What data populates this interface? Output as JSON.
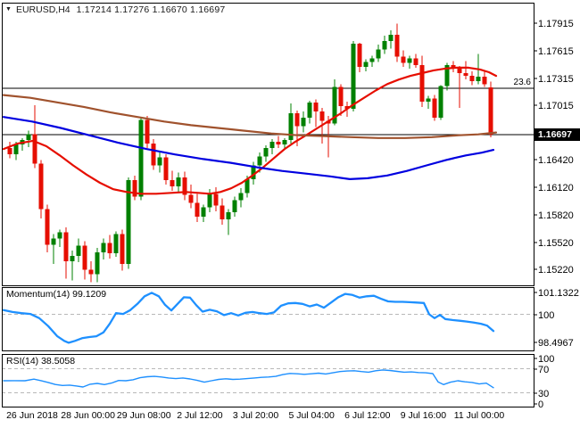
{
  "header": {
    "caret": "▼",
    "symbol": "EURUSD,H4",
    "open": "1.17214",
    "high": "1.17276",
    "low": "1.16670",
    "close": "1.16697"
  },
  "fib": {
    "label": "23.6",
    "price": 1.172
  },
  "price_axis": {
    "ticks": [
      "1.17915",
      "1.17615",
      "1.17315",
      "1.17015",
      "1.16420",
      "1.16120",
      "1.15820",
      "1.15520",
      "1.15220"
    ],
    "current_price": "1.16697"
  },
  "time_axis": {
    "labels": [
      "26 Jun 2018",
      "28 Jun 00:00",
      "29 Jun 08:00",
      "2 Jul 12:00",
      "3 Jul 20:00",
      "5 Jul 04:00",
      "6 Jul 12:00",
      "9 Jul 16:00",
      "11 Jul 00:00"
    ]
  },
  "indicators": {
    "momentum": {
      "label": "Momentum(14) 99.1209",
      "name": "Momentum",
      "period": 14,
      "value": "99.1209",
      "axis_ticks": [
        "101.1322",
        "100",
        "98.4967"
      ],
      "dashed_level": 100
    },
    "rsi": {
      "label": "RSI(14) 38.5058",
      "name": "RSI",
      "period": 14,
      "value": "38.5058",
      "axis_ticks": [
        "100",
        "70",
        "30",
        "0"
      ],
      "dashed_levels": [
        70,
        30
      ]
    }
  },
  "colors": {
    "bull": "#008000",
    "bear": "#e60e00",
    "ma_fast": "#e60e00",
    "ma_mid": "#0000e0",
    "ma_slow": "#a0522d",
    "indicator_line": "#1e90ff",
    "dashed_level": "#b8b8b8",
    "border": "#000000",
    "price_box_bg": "#000000",
    "price_box_text": "#ffffff"
  },
  "chart_data": {
    "type": "candlestick",
    "symbol": "EURUSD",
    "timeframe": "H4",
    "title": "EURUSD,H4 1.17214 1.17276 1.16670 1.16697",
    "visible_price_range": [
      1.1522,
      1.17915
    ],
    "horizontal_levels": [
      {
        "label": "23.6",
        "price": 1.172,
        "style": "fibonacci"
      },
      {
        "label": "1.16697",
        "price": 1.16697,
        "style": "current-price"
      }
    ],
    "candles": [
      [
        1.1655,
        1.1662,
        1.1644,
        1.1648
      ],
      [
        1.1648,
        1.1662,
        1.1642,
        1.1659
      ],
      [
        1.1659,
        1.1666,
        1.1652,
        1.1664
      ],
      [
        1.1664,
        1.1674,
        1.1656,
        1.167
      ],
      [
        1.167,
        1.1702,
        1.1633,
        1.1638
      ],
      [
        1.1638,
        1.1642,
        1.1578,
        1.1588
      ],
      [
        1.1588,
        1.1593,
        1.1541,
        1.1549
      ],
      [
        1.1549,
        1.1561,
        1.1528,
        1.1556
      ],
      [
        1.1556,
        1.1566,
        1.1547,
        1.1563
      ],
      [
        1.1563,
        1.1568,
        1.1512,
        1.1531
      ],
      [
        1.1531,
        1.1543,
        1.151,
        1.1537
      ],
      [
        1.1537,
        1.1556,
        1.153,
        1.1548
      ],
      [
        1.1548,
        1.1553,
        1.1511,
        1.1522
      ],
      [
        1.1522,
        1.1531,
        1.1508,
        1.1517
      ],
      [
        1.1517,
        1.1546,
        1.1508,
        1.1541
      ],
      [
        1.1541,
        1.1556,
        1.1533,
        1.1551
      ],
      [
        1.1551,
        1.156,
        1.1534,
        1.154
      ],
      [
        1.154,
        1.1564,
        1.1536,
        1.1561
      ],
      [
        1.1561,
        1.1566,
        1.1521,
        1.1528
      ],
      [
        1.1528,
        1.1623,
        1.1523,
        1.162
      ],
      [
        1.162,
        1.1625,
        1.1598,
        1.1602
      ],
      [
        1.1602,
        1.1688,
        1.1598,
        1.1686
      ],
      [
        1.1686,
        1.169,
        1.1655,
        1.166
      ],
      [
        1.166,
        1.1665,
        1.1631,
        1.1636
      ],
      [
        1.1636,
        1.165,
        1.1628,
        1.1645
      ],
      [
        1.1645,
        1.1648,
        1.1615,
        1.162
      ],
      [
        1.162,
        1.163,
        1.1608,
        1.1613
      ],
      [
        1.1613,
        1.1628,
        1.1606,
        1.1623
      ],
      [
        1.1623,
        1.1629,
        1.1598,
        1.1604
      ],
      [
        1.1604,
        1.1615,
        1.1589,
        1.1595
      ],
      [
        1.1595,
        1.1605,
        1.1574,
        1.158
      ],
      [
        1.158,
        1.1593,
        1.1574,
        1.159
      ],
      [
        1.159,
        1.161,
        1.1585,
        1.1605
      ],
      [
        1.1605,
        1.1612,
        1.1586,
        1.1592
      ],
      [
        1.1592,
        1.16,
        1.1571,
        1.1577
      ],
      [
        1.1577,
        1.1588,
        1.156,
        1.1585
      ],
      [
        1.1585,
        1.1602,
        1.158,
        1.1598
      ],
      [
        1.1598,
        1.1611,
        1.159,
        1.1606
      ],
      [
        1.1606,
        1.1625,
        1.1601,
        1.1621
      ],
      [
        1.1621,
        1.164,
        1.1615,
        1.1636
      ],
      [
        1.1636,
        1.165,
        1.1628,
        1.1646
      ],
      [
        1.1646,
        1.1658,
        1.164,
        1.1655
      ],
      [
        1.1655,
        1.1665,
        1.1648,
        1.1662
      ],
      [
        1.1662,
        1.1668,
        1.1655,
        1.1659
      ],
      [
        1.1659,
        1.1666,
        1.1654,
        1.1664
      ],
      [
        1.1664,
        1.1704,
        1.166,
        1.1693
      ],
      [
        1.1693,
        1.1696,
        1.1657,
        1.1679
      ],
      [
        1.1679,
        1.1695,
        1.1672,
        1.1688
      ],
      [
        1.1688,
        1.1707,
        1.1682,
        1.1705
      ],
      [
        1.1705,
        1.1708,
        1.1678,
        1.1695
      ],
      [
        1.1695,
        1.1699,
        1.166,
        1.1685
      ],
      [
        1.1685,
        1.169,
        1.1645,
        1.1682
      ],
      [
        1.1682,
        1.173,
        1.168,
        1.1722
      ],
      [
        1.1722,
        1.1725,
        1.169,
        1.1701
      ],
      [
        1.1701,
        1.1706,
        1.1689,
        1.1698
      ],
      [
        1.1698,
        1.1772,
        1.1695,
        1.1769
      ],
      [
        1.1769,
        1.177,
        1.1738,
        1.1744
      ],
      [
        1.1744,
        1.1752,
        1.1739,
        1.1749
      ],
      [
        1.1749,
        1.1756,
        1.1744,
        1.1753
      ],
      [
        1.1753,
        1.1768,
        1.1749,
        1.1763
      ],
      [
        1.1763,
        1.1778,
        1.1758,
        1.1772
      ],
      [
        1.1772,
        1.1784,
        1.1764,
        1.1779
      ],
      [
        1.1779,
        1.1791,
        1.1749,
        1.1755
      ],
      [
        1.1755,
        1.1762,
        1.1744,
        1.1748
      ],
      [
        1.1748,
        1.1756,
        1.1742,
        1.1753
      ],
      [
        1.1753,
        1.1758,
        1.1743,
        1.1746
      ],
      [
        1.1746,
        1.1756,
        1.17,
        1.1706
      ],
      [
        1.1706,
        1.1712,
        1.1698,
        1.1709
      ],
      [
        1.1709,
        1.1713,
        1.1685,
        1.1688
      ],
      [
        1.1688,
        1.1724,
        1.1686,
        1.1723
      ],
      [
        1.1723,
        1.1748,
        1.1718,
        1.1746
      ],
      [
        1.1746,
        1.175,
        1.1738,
        1.1742
      ],
      [
        1.1742,
        1.1745,
        1.1699,
        1.1737
      ],
      [
        1.1737,
        1.175,
        1.173,
        1.1734
      ],
      [
        1.1734,
        1.1739,
        1.1724,
        1.1728
      ],
      [
        1.1728,
        1.1758,
        1.1725,
        1.1733
      ],
      [
        1.1733,
        1.1739,
        1.1722,
        1.1725
      ],
      [
        1.17214,
        1.17276,
        1.1667,
        1.16697
      ]
    ],
    "moving_averages": [
      {
        "name": "fast-ma",
        "color_key": "ma_fast",
        "points": [
          [
            4,
            1.1654
          ],
          [
            20,
            1.166
          ],
          [
            37,
            1.1663
          ],
          [
            52,
            1.1657
          ],
          [
            67,
            1.1647
          ],
          [
            82,
            1.1636
          ],
          [
            97,
            1.1626
          ],
          [
            112,
            1.1617
          ],
          [
            127,
            1.161
          ],
          [
            142,
            1.1607
          ],
          [
            158,
            1.1605
          ],
          [
            175,
            1.1605
          ],
          [
            192,
            1.1606
          ],
          [
            208,
            1.1607
          ],
          [
            222,
            1.1606
          ],
          [
            235,
            1.1605
          ],
          [
            247,
            1.1607
          ],
          [
            259,
            1.1611
          ],
          [
            271,
            1.1617
          ],
          [
            283,
            1.1625
          ],
          [
            295,
            1.1634
          ],
          [
            307,
            1.1644
          ],
          [
            319,
            1.1654
          ],
          [
            331,
            1.1662
          ],
          [
            343,
            1.1669
          ],
          [
            356,
            1.1677
          ],
          [
            369,
            1.1685
          ],
          [
            382,
            1.1693
          ],
          [
            395,
            1.1702
          ],
          [
            408,
            1.171
          ],
          [
            421,
            1.1718
          ],
          [
            434,
            1.1725
          ],
          [
            447,
            1.173
          ],
          [
            460,
            1.1734
          ],
          [
            473,
            1.1737
          ],
          [
            486,
            1.174
          ],
          [
            499,
            1.1742
          ],
          [
            512,
            1.1743
          ],
          [
            525,
            1.1743
          ],
          [
            538,
            1.1741
          ],
          [
            548,
            1.1738
          ],
          [
            556,
            1.1734
          ]
        ]
      },
      {
        "name": "mid-ma",
        "color_key": "ma_mid",
        "points": [
          [
            4,
            1.1689
          ],
          [
            36,
            1.1684
          ],
          [
            68,
            1.1677
          ],
          [
            100,
            1.1669
          ],
          [
            132,
            1.1661
          ],
          [
            164,
            1.1654
          ],
          [
            196,
            1.1648
          ],
          [
            228,
            1.1643
          ],
          [
            258,
            1.1639
          ],
          [
            288,
            1.1634
          ],
          [
            316,
            1.163
          ],
          [
            344,
            1.1627
          ],
          [
            370,
            1.1624
          ],
          [
            392,
            1.1621
          ],
          [
            412,
            1.1622
          ],
          [
            434,
            1.1625
          ],
          [
            456,
            1.163
          ],
          [
            478,
            1.1636
          ],
          [
            500,
            1.1642
          ],
          [
            522,
            1.1647
          ],
          [
            540,
            1.165
          ],
          [
            553,
            1.1653
          ]
        ]
      },
      {
        "name": "slow-ma",
        "color_key": "ma_slow",
        "points": [
          [
            4,
            1.1713
          ],
          [
            34,
            1.171
          ],
          [
            64,
            1.1705
          ],
          [
            94,
            1.17
          ],
          [
            124,
            1.1694
          ],
          [
            154,
            1.1689
          ],
          [
            184,
            1.1684
          ],
          [
            214,
            1.168
          ],
          [
            244,
            1.1677
          ],
          [
            274,
            1.1674
          ],
          [
            304,
            1.1671
          ],
          [
            334,
            1.1669
          ],
          [
            364,
            1.1668
          ],
          [
            394,
            1.1667
          ],
          [
            424,
            1.1666
          ],
          [
            454,
            1.1666
          ],
          [
            484,
            1.1667
          ],
          [
            514,
            1.1669
          ],
          [
            536,
            1.167
          ],
          [
            556,
            1.1672
          ]
        ]
      }
    ],
    "momentum_series": [
      [
        4,
        100.22
      ],
      [
        14,
        100.12
      ],
      [
        24,
        100.06
      ],
      [
        34,
        100.02
      ],
      [
        44,
        99.8
      ],
      [
        54,
        99.38
      ],
      [
        64,
        98.85
      ],
      [
        72,
        98.6
      ],
      [
        77,
        98.4967
      ],
      [
        84,
        98.6
      ],
      [
        92,
        98.74
      ],
      [
        100,
        98.8
      ],
      [
        108,
        98.84
      ],
      [
        116,
        99.05
      ],
      [
        123,
        99.5
      ],
      [
        130,
        100.06
      ],
      [
        138,
        100.02
      ],
      [
        146,
        100.22
      ],
      [
        154,
        100.55
      ],
      [
        162,
        100.95
      ],
      [
        170,
        101.1322
      ],
      [
        178,
        100.95
      ],
      [
        185,
        100.5
      ],
      [
        192,
        100.2
      ],
      [
        199,
        100.55
      ],
      [
        206,
        100.9
      ],
      [
        213,
        100.88
      ],
      [
        220,
        100.48
      ],
      [
        227,
        100.14
      ],
      [
        235,
        100.24
      ],
      [
        243,
        100.16
      ],
      [
        251,
        99.96
      ],
      [
        259,
        100.06
      ],
      [
        267,
        99.94
      ],
      [
        275,
        100.08
      ],
      [
        283,
        100.12
      ],
      [
        291,
        100.06
      ],
      [
        299,
        100.02
      ],
      [
        307,
        100.1
      ],
      [
        315,
        100.45
      ],
      [
        323,
        100.58
      ],
      [
        331,
        100.6
      ],
      [
        339,
        100.55
      ],
      [
        347,
        100.42
      ],
      [
        355,
        100.52
      ],
      [
        363,
        100.35
      ],
      [
        371,
        100.62
      ],
      [
        379,
        100.9
      ],
      [
        387,
        101.08
      ],
      [
        395,
        101.02
      ],
      [
        403,
        100.88
      ],
      [
        411,
        100.95
      ],
      [
        419,
        100.98
      ],
      [
        427,
        100.82
      ],
      [
        435,
        100.68
      ],
      [
        443,
        100.66
      ],
      [
        451,
        100.66
      ],
      [
        459,
        100.64
      ],
      [
        467,
        100.62
      ],
      [
        475,
        100.6
      ],
      [
        481,
        100.0
      ],
      [
        487,
        99.8
      ],
      [
        493,
        99.97
      ],
      [
        499,
        99.75
      ],
      [
        507,
        99.7
      ],
      [
        515,
        99.66
      ],
      [
        523,
        99.62
      ],
      [
        531,
        99.56
      ],
      [
        539,
        99.5
      ],
      [
        546,
        99.4
      ],
      [
        553,
        99.12
      ]
    ],
    "rsi_series": [
      [
        4,
        50.0
      ],
      [
        16,
        50.2
      ],
      [
        28,
        50.0
      ],
      [
        38,
        52.6
      ],
      [
        46,
        50.2
      ],
      [
        54,
        47.2
      ],
      [
        62,
        43.8
      ],
      [
        70,
        42.2
      ],
      [
        78,
        42.8
      ],
      [
        86,
        41.2
      ],
      [
        93,
        39.6
      ],
      [
        101,
        44.2
      ],
      [
        109,
        45.6
      ],
      [
        117,
        43.6
      ],
      [
        125,
        46.2
      ],
      [
        133,
        50.4
      ],
      [
        141,
        50.0
      ],
      [
        149,
        51.6
      ],
      [
        157,
        55.0
      ],
      [
        165,
        56.6
      ],
      [
        173,
        57.2
      ],
      [
        181,
        56.2
      ],
      [
        189,
        54.6
      ],
      [
        197,
        53.6
      ],
      [
        205,
        54.6
      ],
      [
        213,
        53.0
      ],
      [
        221,
        50.6
      ],
      [
        229,
        47.6
      ],
      [
        237,
        50.0
      ],
      [
        245,
        52.2
      ],
      [
        253,
        53.2
      ],
      [
        261,
        52.2
      ],
      [
        269,
        52.6
      ],
      [
        277,
        53.6
      ],
      [
        285,
        54.6
      ],
      [
        293,
        55.6
      ],
      [
        301,
        56.2
      ],
      [
        309,
        57.2
      ],
      [
        317,
        60.2
      ],
      [
        325,
        62.2
      ],
      [
        333,
        61.6
      ],
      [
        341,
        60.6
      ],
      [
        349,
        61.6
      ],
      [
        357,
        62.6
      ],
      [
        365,
        61.2
      ],
      [
        373,
        63.2
      ],
      [
        381,
        65.2
      ],
      [
        389,
        66.2
      ],
      [
        397,
        66.6
      ],
      [
        405,
        65.2
      ],
      [
        413,
        64.2
      ],
      [
        421,
        66.6
      ],
      [
        429,
        68.0
      ],
      [
        437,
        67.0
      ],
      [
        445,
        65.6
      ],
      [
        453,
        64.2
      ],
      [
        461,
        64.6
      ],
      [
        469,
        63.6
      ],
      [
        477,
        63.2
      ],
      [
        485,
        61.8
      ],
      [
        491,
        48.0
      ],
      [
        497,
        43.6
      ],
      [
        505,
        47.6
      ],
      [
        513,
        50.0
      ],
      [
        521,
        48.2
      ],
      [
        529,
        47.2
      ],
      [
        537,
        44.6
      ],
      [
        545,
        46.0
      ],
      [
        553,
        38.51
      ]
    ]
  }
}
